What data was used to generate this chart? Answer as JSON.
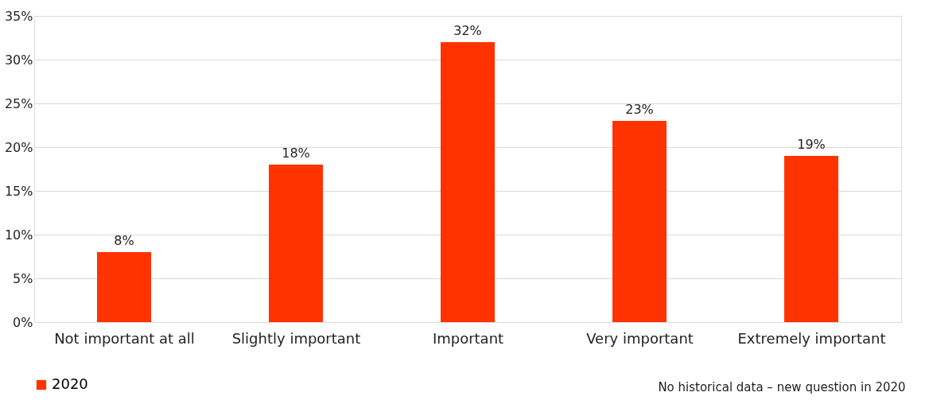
{
  "chart_data": {
    "type": "bar",
    "categories": [
      "Not important at all",
      "Slightly important",
      "Important",
      "Very important",
      "Extremely important"
    ],
    "series": [
      {
        "name": "2020",
        "color": "#ff3300",
        "values": [
          8,
          18,
          32,
          23,
          19
        ],
        "value_labels": [
          "8%",
          "18%",
          "32%",
          "23%",
          "19%"
        ]
      }
    ],
    "ylim": [
      0,
      35
    ],
    "yticks": [
      {
        "value": 0,
        "label": "0%"
      },
      {
        "value": 5,
        "label": "5%"
      },
      {
        "value": 10,
        "label": "10%"
      },
      {
        "value": 15,
        "label": "15%"
      },
      {
        "value": 20,
        "label": "20%"
      },
      {
        "value": 25,
        "label": "25%"
      },
      {
        "value": 30,
        "label": "30%"
      },
      {
        "value": 35,
        "label": "35%"
      }
    ],
    "grid": "y",
    "legend": "bottom",
    "annotations": [
      "No historical data – new question in 2020"
    ]
  }
}
